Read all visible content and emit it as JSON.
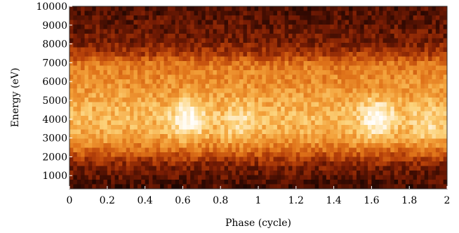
{
  "chart_data": {
    "type": "heatmap",
    "title": "",
    "xlabel": "Phase (cycle)",
    "ylabel": "Energy (eV)",
    "xlim": [
      0,
      2
    ],
    "ylim": [
      300,
      10000
    ],
    "x_ticks": [
      0,
      0.2,
      0.4,
      0.6,
      0.8,
      1,
      1.2,
      1.4,
      1.6,
      1.8,
      2
    ],
    "x_tick_labels": [
      "0",
      "0.2",
      "0.4",
      "0.6",
      "0.8",
      "1",
      "1.2",
      "1.4",
      "1.6",
      "1.8",
      "2"
    ],
    "y_ticks": [
      1000,
      2000,
      3000,
      4000,
      5000,
      6000,
      7000,
      8000,
      9000,
      10000
    ],
    "y_tick_labels": [
      "1000",
      "2000",
      "3000",
      "4000",
      "5000",
      "6000",
      "7000",
      "8000",
      "9000",
      "10000"
    ],
    "colormap": [
      "#000000",
      "#3a0b02",
      "#7a1d04",
      "#b8420a",
      "#e0741a",
      "#f3a13a",
      "#fcd27a",
      "#fff4dd",
      "#ffffff"
    ],
    "grid": false,
    "intensity": {
      "energy_eV": [
        500,
        1500,
        2500,
        3000,
        3500,
        4000,
        4500,
        5000,
        5500,
        6000,
        6500,
        7000,
        7500,
        8000,
        8500,
        9000,
        9500,
        10000
      ],
      "baseline": [
        0.15,
        0.25,
        0.52,
        0.62,
        0.66,
        0.68,
        0.67,
        0.64,
        0.6,
        0.57,
        0.55,
        0.5,
        0.34,
        0.26,
        0.22,
        0.2,
        0.18,
        0.16
      ],
      "bright_regions": [
        {
          "phase": 0.63,
          "energy_eV": 4000,
          "peak": 1.0
        },
        {
          "phase": 0.9,
          "energy_eV": 3800,
          "peak": 0.82
        },
        {
          "phase": 1.63,
          "energy_eV": 4000,
          "peak": 1.0
        },
        {
          "phase": 1.9,
          "energy_eV": 3800,
          "peak": 0.82
        }
      ]
    }
  }
}
